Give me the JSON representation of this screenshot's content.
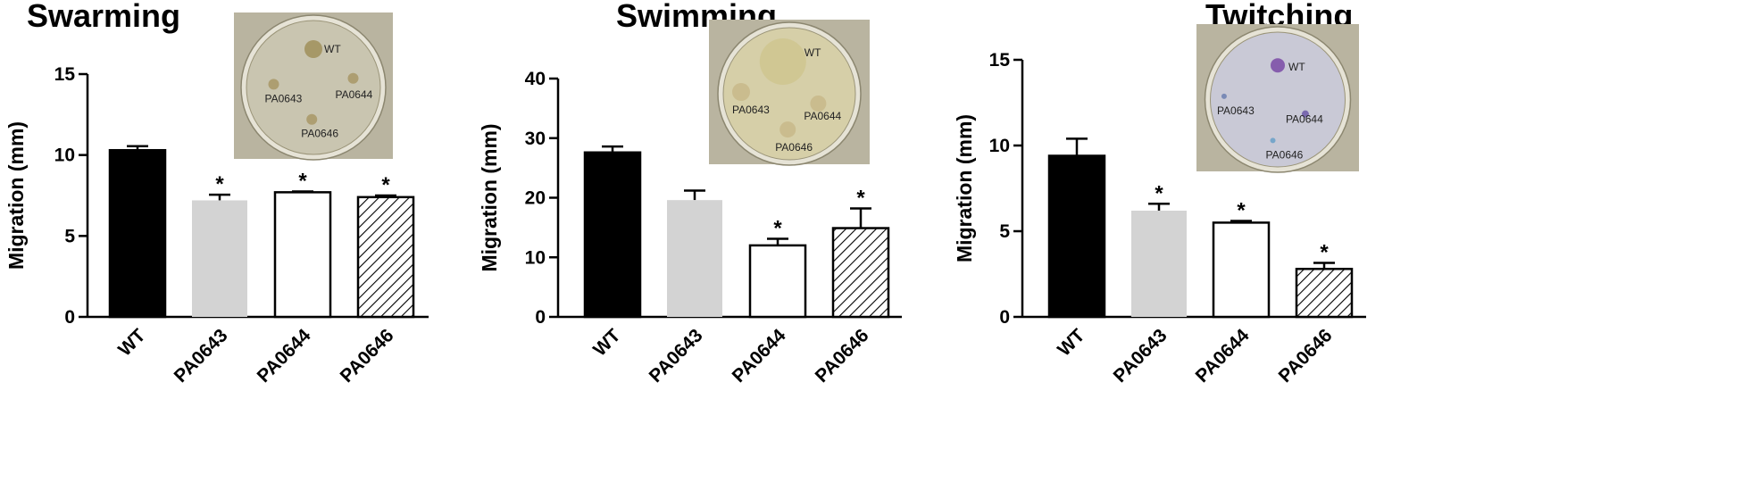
{
  "chart_data": [
    {
      "type": "bar",
      "title": "Swarming",
      "ylabel": "Migration (mm)",
      "categories": [
        "WT",
        "PA0643",
        "PA0644",
        "PA0646"
      ],
      "values": [
        10.3,
        7.2,
        7.7,
        7.4
      ],
      "errors": [
        0.25,
        0.35,
        0.05,
        0.1
      ],
      "significance": [
        "",
        "*",
        "*",
        "*"
      ],
      "ylim": [
        0,
        15
      ],
      "yticks": [
        0,
        5,
        10,
        15
      ],
      "fills": [
        "solid-black",
        "light-gray",
        "white",
        "hatched"
      ],
      "inset": {
        "plate": "swarming",
        "labels": [
          "WT",
          "PA0643",
          "PA0644",
          "PA0646"
        ]
      }
    },
    {
      "type": "bar",
      "title": "Swimming",
      "ylabel": "Migration (mm)",
      "categories": [
        "WT",
        "PA0643",
        "PA0644",
        "PA0646"
      ],
      "values": [
        27.6,
        19.6,
        12.0,
        14.9
      ],
      "errors": [
        1.0,
        1.6,
        1.1,
        3.3
      ],
      "significance": [
        "",
        "",
        "*",
        "*"
      ],
      "ylim": [
        0,
        40
      ],
      "yticks": [
        0,
        10,
        20,
        30,
        40
      ],
      "fills": [
        "solid-black",
        "light-gray",
        "white",
        "hatched"
      ],
      "inset": {
        "plate": "swimming",
        "labels": [
          "WT",
          "PA0643",
          "PA0644",
          "PA0646"
        ]
      }
    },
    {
      "type": "bar",
      "title": "Twitching",
      "ylabel": "Migration (mm)",
      "categories": [
        "WT",
        "PA0643",
        "PA0644",
        "PA0646"
      ],
      "values": [
        9.4,
        6.2,
        5.5,
        2.8
      ],
      "errors": [
        1.0,
        0.4,
        0.1,
        0.35
      ],
      "significance": [
        "",
        "*",
        "*",
        "*"
      ],
      "ylim": [
        0,
        15
      ],
      "yticks": [
        0,
        5,
        10,
        15
      ],
      "fills": [
        "solid-black",
        "light-gray",
        "white",
        "hatched"
      ],
      "inset": {
        "plate": "twitching",
        "labels": [
          "WT",
          "PA0643",
          "PA0644",
          "PA0646"
        ]
      }
    }
  ],
  "colors": {
    "bar_black": "#000000",
    "bar_gray": "#d3d3d3",
    "bar_white": "#ffffff",
    "swarm_plate_bg": "#c9c5b0",
    "swim_plate_bg": "#d6cfa8",
    "twitch_plate_bg": "#c9c9d6"
  }
}
